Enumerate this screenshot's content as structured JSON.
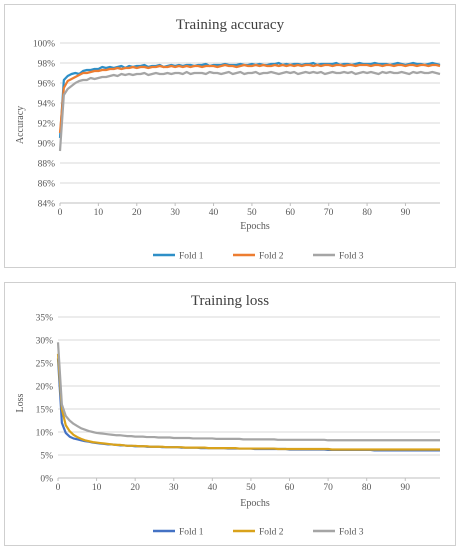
{
  "colors": {
    "fold1": "#2e8fc7",
    "fold2": "#ed7d31",
    "fold3": "#a5a5a5",
    "fold2_loss": "#d9a21b",
    "fold1_loss": "#4472c4",
    "grid": "#d9d9d9",
    "axis": "#bfbfbf"
  },
  "chart_data": [
    {
      "type": "line",
      "title": "Training accuracy",
      "xlabel": "Epochs",
      "ylabel": "Accuracy",
      "xlim": [
        0,
        99
      ],
      "ylim": [
        84,
        100
      ],
      "x_ticks": [
        "0",
        "10",
        "20",
        "30",
        "40",
        "50",
        "60",
        "70",
        "80",
        "90"
      ],
      "y_ticks": [
        "84%",
        "86%",
        "88%",
        "90%",
        "92%",
        "94%",
        "96%",
        "98%",
        "100%"
      ],
      "grid": true,
      "legend_position": "bottom",
      "x": [
        0,
        1,
        2,
        3,
        4,
        5,
        6,
        7,
        8,
        9,
        10,
        11,
        12,
        13,
        14,
        15,
        16,
        17,
        18,
        19,
        20,
        21,
        22,
        23,
        24,
        25,
        26,
        27,
        28,
        29,
        30,
        31,
        32,
        33,
        34,
        35,
        36,
        37,
        38,
        39,
        40,
        41,
        42,
        43,
        44,
        45,
        46,
        47,
        48,
        49,
        50,
        51,
        52,
        53,
        54,
        55,
        56,
        57,
        58,
        59,
        60,
        61,
        62,
        63,
        64,
        65,
        66,
        67,
        68,
        69,
        70,
        71,
        72,
        73,
        74,
        75,
        76,
        77,
        78,
        79,
        80,
        81,
        82,
        83,
        84,
        85,
        86,
        87,
        88,
        89,
        90,
        91,
        92,
        93,
        94,
        95,
        96,
        97,
        98,
        99
      ],
      "series": [
        {
          "name": "Fold 1",
          "values": [
            90.5,
            96.3,
            96.7,
            96.9,
            97.0,
            96.9,
            97.2,
            97.3,
            97.3,
            97.4,
            97.4,
            97.6,
            97.5,
            97.6,
            97.5,
            97.6,
            97.7,
            97.5,
            97.7,
            97.6,
            97.7,
            97.7,
            97.8,
            97.6,
            97.7,
            97.7,
            97.8,
            97.6,
            97.7,
            97.8,
            97.7,
            97.8,
            97.7,
            97.8,
            97.8,
            97.7,
            97.8,
            97.8,
            97.9,
            97.7,
            97.8,
            97.8,
            97.8,
            97.9,
            97.8,
            97.8,
            97.8,
            97.9,
            97.8,
            97.8,
            97.9,
            97.8,
            97.9,
            97.8,
            97.8,
            97.9,
            97.9,
            98.0,
            97.8,
            97.9,
            97.8,
            97.9,
            97.9,
            97.8,
            97.9,
            97.9,
            98.0,
            97.8,
            97.9,
            97.9,
            97.9,
            97.9,
            98.0,
            97.8,
            97.9,
            97.9,
            97.8,
            97.9,
            98.0,
            97.9,
            97.9,
            97.9,
            98.0,
            97.9,
            97.9,
            97.9,
            97.8,
            97.9,
            98.0,
            97.9,
            97.8,
            97.9,
            98.0,
            97.9,
            97.9,
            97.8,
            97.9,
            98.0,
            97.9,
            97.8
          ]
        },
        {
          "name": "Fold 2",
          "values": [
            91.0,
            95.5,
            96.2,
            96.4,
            96.6,
            96.8,
            97.0,
            97.0,
            97.1,
            97.2,
            97.2,
            97.3,
            97.3,
            97.4,
            97.4,
            97.5,
            97.4,
            97.5,
            97.5,
            97.6,
            97.5,
            97.6,
            97.6,
            97.5,
            97.6,
            97.6,
            97.7,
            97.6,
            97.6,
            97.7,
            97.6,
            97.7,
            97.6,
            97.7,
            97.6,
            97.7,
            97.7,
            97.6,
            97.7,
            97.7,
            97.7,
            97.6,
            97.7,
            97.8,
            97.7,
            97.7,
            97.6,
            97.7,
            97.8,
            97.7,
            97.7,
            97.8,
            97.7,
            97.8,
            97.7,
            97.7,
            97.8,
            97.7,
            97.8,
            97.7,
            97.8,
            97.7,
            97.8,
            97.7,
            97.8,
            97.8,
            97.7,
            97.8,
            97.7,
            97.8,
            97.8,
            97.7,
            97.8,
            97.8,
            97.7,
            97.8,
            97.8,
            97.7,
            97.8,
            97.8,
            97.8,
            97.7,
            97.8,
            97.8,
            97.7,
            97.8,
            97.8,
            97.7,
            97.8,
            97.8,
            97.7,
            97.8,
            97.8,
            97.7,
            97.8,
            97.8,
            97.7,
            97.8,
            97.8,
            97.7
          ]
        },
        {
          "name": "Fold 3",
          "values": [
            89.2,
            94.8,
            95.4,
            95.7,
            96.0,
            96.2,
            96.3,
            96.3,
            96.5,
            96.4,
            96.5,
            96.6,
            96.6,
            96.7,
            96.8,
            96.7,
            96.9,
            96.8,
            96.9,
            96.8,
            96.9,
            96.9,
            97.0,
            96.8,
            96.9,
            97.0,
            96.9,
            96.9,
            97.0,
            96.9,
            97.0,
            97.0,
            96.9,
            97.1,
            96.9,
            97.0,
            97.0,
            97.0,
            96.9,
            97.1,
            97.0,
            97.0,
            96.9,
            97.0,
            97.1,
            96.9,
            97.0,
            97.1,
            96.9,
            97.0,
            97.0,
            97.1,
            96.9,
            97.0,
            97.0,
            97.1,
            97.0,
            96.9,
            97.0,
            97.1,
            97.0,
            97.1,
            96.9,
            97.0,
            97.1,
            97.0,
            97.1,
            97.0,
            97.1,
            96.9,
            97.0,
            97.1,
            97.0,
            97.0,
            97.1,
            97.0,
            97.1,
            96.9,
            97.0,
            97.1,
            97.0,
            97.1,
            97.0,
            96.9,
            97.1,
            97.0,
            97.1,
            97.0,
            97.0,
            97.1,
            97.0,
            96.9,
            97.1,
            97.0,
            97.1,
            97.0,
            97.0,
            97.1,
            97.0,
            96.9
          ]
        }
      ]
    },
    {
      "type": "line",
      "title": "Training loss",
      "xlabel": "Epochs",
      "ylabel": "Loss",
      "xlim": [
        0,
        99
      ],
      "ylim": [
        0,
        35
      ],
      "x_ticks": [
        "0",
        "10",
        "20",
        "30",
        "40",
        "50",
        "60",
        "70",
        "80",
        "90"
      ],
      "y_ticks": [
        "0%",
        "5%",
        "10%",
        "15%",
        "20%",
        "25%",
        "30%",
        "35%"
      ],
      "grid": true,
      "legend_position": "bottom",
      "x": [
        0,
        1,
        2,
        3,
        4,
        5,
        6,
        7,
        8,
        9,
        10,
        11,
        12,
        13,
        14,
        15,
        16,
        17,
        18,
        19,
        20,
        21,
        22,
        23,
        24,
        25,
        26,
        27,
        28,
        29,
        30,
        31,
        32,
        33,
        34,
        35,
        36,
        37,
        38,
        39,
        40,
        41,
        42,
        43,
        44,
        45,
        46,
        47,
        48,
        49,
        50,
        51,
        52,
        53,
        54,
        55,
        56,
        57,
        58,
        59,
        60,
        61,
        62,
        63,
        64,
        65,
        66,
        67,
        68,
        69,
        70,
        71,
        72,
        73,
        74,
        75,
        76,
        77,
        78,
        79,
        80,
        81,
        82,
        83,
        84,
        85,
        86,
        87,
        88,
        89,
        90,
        91,
        92,
        93,
        94,
        95,
        96,
        97,
        98,
        99
      ],
      "series": [
        {
          "name": "Fold 1",
          "values": [
            26.0,
            12.0,
            9.8,
            9.0,
            8.6,
            8.4,
            8.2,
            8.0,
            7.9,
            7.7,
            7.6,
            7.5,
            7.4,
            7.3,
            7.3,
            7.2,
            7.1,
            7.1,
            7.0,
            7.0,
            6.9,
            6.9,
            6.9,
            6.8,
            6.8,
            6.8,
            6.8,
            6.7,
            6.7,
            6.7,
            6.7,
            6.7,
            6.6,
            6.6,
            6.6,
            6.6,
            6.6,
            6.5,
            6.5,
            6.5,
            6.5,
            6.5,
            6.5,
            6.5,
            6.4,
            6.4,
            6.4,
            6.4,
            6.4,
            6.4,
            6.4,
            6.3,
            6.3,
            6.3,
            6.3,
            6.3,
            6.3,
            6.3,
            6.3,
            6.3,
            6.2,
            6.2,
            6.2,
            6.2,
            6.2,
            6.2,
            6.2,
            6.2,
            6.2,
            6.2,
            6.1,
            6.1,
            6.1,
            6.1,
            6.1,
            6.1,
            6.1,
            6.1,
            6.1,
            6.1,
            6.1,
            6.1,
            6.0,
            6.0,
            6.0,
            6.0,
            6.0,
            6.0,
            6.0,
            6.0,
            6.0,
            6.0,
            6.0,
            6.0,
            6.0,
            6.0,
            6.0,
            6.0,
            6.0,
            6.0
          ]
        },
        {
          "name": "Fold 2",
          "values": [
            27.0,
            15.0,
            11.5,
            10.2,
            9.4,
            8.9,
            8.5,
            8.2,
            8.0,
            7.8,
            7.7,
            7.6,
            7.5,
            7.4,
            7.3,
            7.2,
            7.2,
            7.1,
            7.0,
            7.0,
            7.0,
            6.9,
            6.9,
            6.9,
            6.8,
            6.8,
            6.8,
            6.8,
            6.7,
            6.7,
            6.7,
            6.7,
            6.7,
            6.6,
            6.6,
            6.6,
            6.6,
            6.6,
            6.6,
            6.5,
            6.5,
            6.5,
            6.5,
            6.5,
            6.5,
            6.5,
            6.5,
            6.4,
            6.4,
            6.4,
            6.4,
            6.4,
            6.4,
            6.4,
            6.4,
            6.4,
            6.4,
            6.3,
            6.3,
            6.3,
            6.3,
            6.3,
            6.3,
            6.3,
            6.3,
            6.3,
            6.3,
            6.3,
            6.3,
            6.3,
            6.3,
            6.2,
            6.2,
            6.2,
            6.2,
            6.2,
            6.2,
            6.2,
            6.2,
            6.2,
            6.2,
            6.2,
            6.2,
            6.2,
            6.2,
            6.2,
            6.2,
            6.2,
            6.2,
            6.2,
            6.2,
            6.2,
            6.2,
            6.2,
            6.2,
            6.2,
            6.2,
            6.2,
            6.2,
            6.2
          ]
        },
        {
          "name": "Fold 3",
          "values": [
            29.5,
            16.0,
            13.5,
            12.5,
            11.8,
            11.3,
            10.8,
            10.5,
            10.2,
            10.0,
            9.8,
            9.7,
            9.6,
            9.5,
            9.4,
            9.3,
            9.3,
            9.2,
            9.1,
            9.1,
            9.0,
            9.0,
            9.0,
            8.9,
            8.9,
            8.9,
            8.8,
            8.8,
            8.8,
            8.8,
            8.7,
            8.7,
            8.7,
            8.7,
            8.7,
            8.6,
            8.6,
            8.6,
            8.6,
            8.6,
            8.6,
            8.5,
            8.5,
            8.5,
            8.5,
            8.5,
            8.5,
            8.5,
            8.4,
            8.4,
            8.4,
            8.4,
            8.4,
            8.4,
            8.4,
            8.4,
            8.4,
            8.3,
            8.3,
            8.3,
            8.3,
            8.3,
            8.3,
            8.3,
            8.3,
            8.3,
            8.3,
            8.3,
            8.3,
            8.3,
            8.2,
            8.2,
            8.2,
            8.2,
            8.2,
            8.2,
            8.2,
            8.2,
            8.2,
            8.2,
            8.2,
            8.2,
            8.2,
            8.2,
            8.2,
            8.2,
            8.2,
            8.2,
            8.2,
            8.2,
            8.2,
            8.2,
            8.2,
            8.2,
            8.2,
            8.2,
            8.2,
            8.2,
            8.2,
            8.2
          ]
        }
      ]
    }
  ]
}
